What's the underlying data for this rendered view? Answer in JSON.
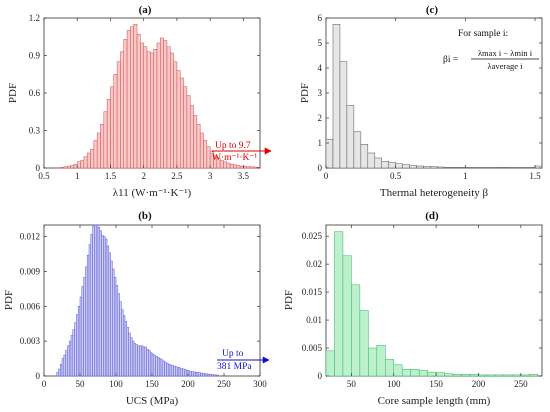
{
  "chart_data": [
    {
      "panel": "(a)",
      "type": "bar",
      "xlabel": "λ11 (W·m⁻¹·K⁻¹)",
      "ylabel": "PDF",
      "xlim": [
        0.5,
        3.75
      ],
      "ylim": [
        0,
        1.2
      ],
      "xticks": [
        0.5,
        1,
        1.5,
        2,
        2.5,
        3,
        3.5
      ],
      "xtick_labels": [
        "0.5",
        "1",
        "1.5",
        "2",
        "2.5",
        "3",
        "3.5"
      ],
      "yticks": [
        0,
        0.3,
        0.6,
        0.9,
        1.2
      ],
      "ytick_labels": [
        "0",
        "0.3",
        "0.6",
        "0.9",
        "1.2"
      ],
      "bin_width": 0.05,
      "bin_start": 0.7,
      "values": [
        0.003,
        0.005,
        0.01,
        0.015,
        0.02,
        0.03,
        0.05,
        0.06,
        0.09,
        0.12,
        0.15,
        0.22,
        0.28,
        0.35,
        0.45,
        0.55,
        0.65,
        0.75,
        0.85,
        0.93,
        1.03,
        1.1,
        1.13,
        1.15,
        1.07,
        1.0,
        0.97,
        0.93,
        0.92,
        0.95,
        1.0,
        1.04,
        1.02,
        0.97,
        0.92,
        0.85,
        0.78,
        0.72,
        0.65,
        0.58,
        0.5,
        0.42,
        0.35,
        0.28,
        0.22,
        0.17,
        0.13,
        0.1,
        0.08,
        0.06,
        0.05,
        0.04,
        0.03,
        0.025,
        0.02,
        0.015,
        0.012,
        0.01,
        0.01,
        0.008,
        0.006
      ],
      "face_color": "#f7c9c9",
      "edge_color": "#d94a4a",
      "annotation": {
        "line1": "Up to 9.7",
        "line2": "W·m⁻¹·K⁻¹",
        "color": "#e00000"
      }
    },
    {
      "panel": "(b)",
      "type": "bar",
      "xlabel": "UCS (MPa)",
      "ylabel": "PDF",
      "xlim": [
        0,
        300
      ],
      "ylim": [
        0,
        0.013
      ],
      "xticks": [
        0,
        50,
        100,
        150,
        200,
        250,
        300
      ],
      "xtick_labels": [
        "0",
        "50",
        "100",
        "150",
        "200",
        "250",
        "300"
      ],
      "yticks": [
        0,
        0.003,
        0.006,
        0.009,
        0.012
      ],
      "ytick_labels": [
        "0",
        "0.003",
        "0.006",
        "0.009",
        "0.012"
      ],
      "bin_width": 2.5,
      "bin_start": 17.5,
      "values": [
        0.0003,
        0.0006,
        0.001,
        0.0015,
        0.0018,
        0.0022,
        0.0026,
        0.003,
        0.0035,
        0.004,
        0.0046,
        0.0053,
        0.006,
        0.0068,
        0.0077,
        0.0085,
        0.0094,
        0.0104,
        0.0113,
        0.0122,
        0.0129,
        0.0133,
        0.0131,
        0.0128,
        0.0125,
        0.0121,
        0.012,
        0.0118,
        0.0112,
        0.0106,
        0.0099,
        0.0092,
        0.0085,
        0.0078,
        0.0071,
        0.0064,
        0.0057,
        0.0052,
        0.0047,
        0.0042,
        0.0037,
        0.0033,
        0.003,
        0.0028,
        0.0027,
        0.0026,
        0.0026,
        0.0026,
        0.0025,
        0.0025,
        0.0023,
        0.0022,
        0.002,
        0.0019,
        0.0018,
        0.0017,
        0.0016,
        0.0015,
        0.0014,
        0.0013,
        0.0012,
        0.0011,
        0.001,
        0.00095,
        0.0009,
        0.00085,
        0.0008,
        0.00075,
        0.0007,
        0.00065,
        0.0006,
        0.00055,
        0.0005,
        0.00045,
        0.0004,
        0.00038,
        0.00035,
        0.00032,
        0.0003,
        0.00028,
        0.00025,
        0.00022,
        0.0002,
        0.00018,
        0.00016,
        0.00014,
        0.00012,
        0.0001,
        9e-05,
        8e-05
      ],
      "face_color": "#cfd0f5",
      "edge_color": "#5a5ad6",
      "annotation": {
        "line1": "Up to",
        "line2": "381 MPa",
        "color": "#1010d0"
      }
    },
    {
      "panel": "(c)",
      "type": "bar",
      "xlabel": "Thermal heterogeneity β",
      "ylabel": "PDF",
      "xlim": [
        0,
        1.55
      ],
      "ylim": [
        0,
        6
      ],
      "xticks": [
        0,
        0.5,
        1,
        1.5
      ],
      "xtick_labels": [
        "0",
        "0.5",
        "1",
        "1.5"
      ],
      "yticks": [
        0,
        1,
        2,
        3,
        4,
        5,
        6
      ],
      "ytick_labels": [
        "0",
        "1",
        "2",
        "3",
        "4",
        "5",
        "6"
      ],
      "bin_width": 0.05,
      "bin_start": 0,
      "values": [
        1.15,
        5.75,
        4.25,
        2.5,
        1.45,
        0.95,
        0.6,
        0.4,
        0.27,
        0.22,
        0.17,
        0.13,
        0.1,
        0.08,
        0.06,
        0.05,
        0.04,
        0.03,
        0.03,
        0.03,
        0.02,
        0.02,
        0.02,
        0.02,
        0.02,
        0.03,
        0.02,
        0.02,
        0.02,
        0.02,
        0.08
      ],
      "face_color": "#e6e6e6",
      "edge_color": "#555555",
      "annotation": {
        "line1": "For sample i:",
        "beta": "βi =",
        "numerator": "λmax i − λmin i",
        "denominator": "λaverage i",
        "color": "#111111"
      }
    },
    {
      "panel": "(d)",
      "type": "bar",
      "xlabel": "Core sample length (mm)",
      "ylabel": "PDF",
      "xlim": [
        20,
        275
      ],
      "ylim": [
        0,
        0.027
      ],
      "xticks": [
        50,
        100,
        150,
        200,
        250
      ],
      "xtick_labels": [
        "50",
        "100",
        "150",
        "200",
        "250"
      ],
      "yticks": [
        0,
        0.005,
        0.01,
        0.015,
        0.02,
        0.025
      ],
      "ytick_labels": [
        "0",
        "0.005",
        "0.01",
        "0.015",
        "0.02",
        "0.025"
      ],
      "bin_width": 10,
      "bin_start": 20,
      "values": [
        0.0045,
        0.0258,
        0.0215,
        0.0163,
        0.0117,
        0.005,
        0.0055,
        0.003,
        0.002,
        0.0012,
        0.0012,
        0.001,
        0.0007,
        0.0006,
        0.0004,
        0.0003,
        0.0003,
        0.0003,
        0.0002,
        0.0002,
        0.0002,
        0.0002,
        0.0002,
        0.0002,
        0.0003
      ],
      "face_color": "#bdf0cc",
      "edge_color": "#2fb85a"
    }
  ]
}
